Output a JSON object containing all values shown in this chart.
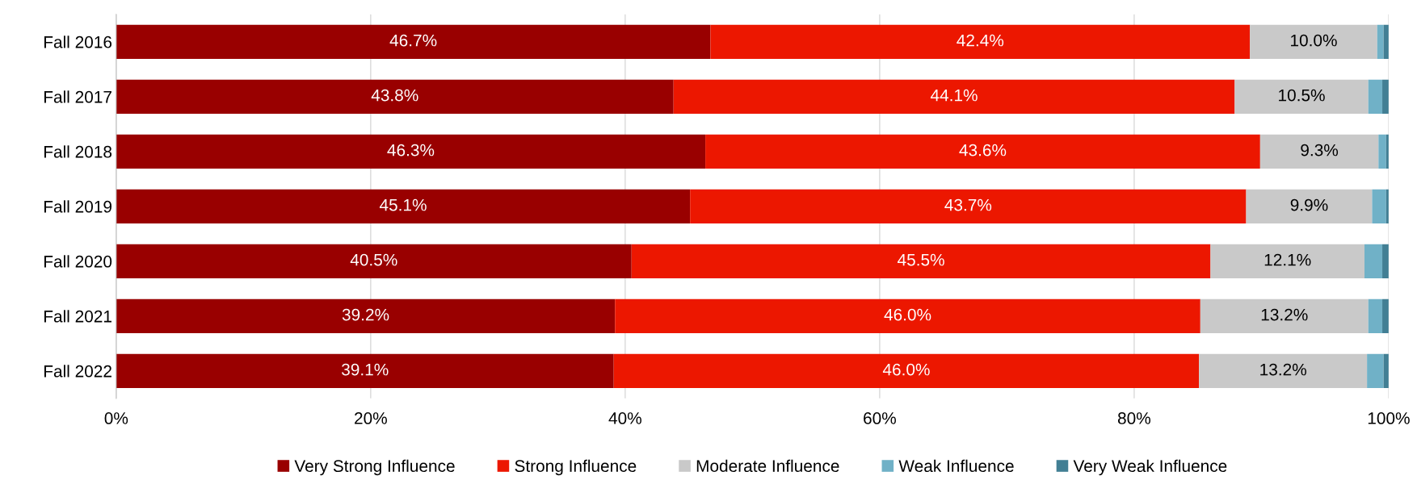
{
  "chart_data": {
    "type": "bar",
    "orientation": "horizontal",
    "stacked": true,
    "categories": [
      "Fall 2016",
      "Fall 2017",
      "Fall 2018",
      "Fall 2019",
      "Fall 2020",
      "Fall 2021",
      "Fall 2022"
    ],
    "series": [
      {
        "name": "Very Strong Influence",
        "color": "#990000",
        "values": [
          46.7,
          43.8,
          46.3,
          45.1,
          40.5,
          39.2,
          39.1
        ],
        "value_labels": [
          "46.7%",
          "43.8%",
          "46.3%",
          "45.1%",
          "40.5%",
          "39.2%",
          "39.1%"
        ]
      },
      {
        "name": "Strong Influence",
        "color": "#ec1700",
        "values": [
          42.4,
          44.1,
          43.6,
          43.7,
          45.5,
          46.0,
          46.0
        ],
        "value_labels": [
          "42.4%",
          "44.1%",
          "43.6%",
          "43.7%",
          "45.5%",
          "46.0%",
          "46.0%"
        ]
      },
      {
        "name": "Moderate Influence",
        "color": "#c9c9c9",
        "values": [
          10.0,
          10.5,
          9.3,
          9.9,
          12.1,
          13.2,
          13.2
        ],
        "value_labels": [
          "10.0%",
          "10.5%",
          "9.3%",
          "9.9%",
          "12.1%",
          "13.2%",
          "13.2%"
        ]
      },
      {
        "name": "Weak Influence",
        "color": "#70b1c7",
        "values": [
          0.5,
          1.1,
          0.6,
          1.1,
          1.4,
          1.1,
          1.3
        ]
      },
      {
        "name": "Very Weak Influence",
        "color": "#427f94",
        "values": [
          0.4,
          0.5,
          0.2,
          0.2,
          0.5,
          0.5,
          0.4
        ]
      }
    ],
    "xlim": [
      0,
      100
    ],
    "xticks": [
      {
        "value": 0,
        "label": "0%"
      },
      {
        "value": 20,
        "label": "20%"
      },
      {
        "value": 40,
        "label": "40%"
      },
      {
        "value": 60,
        "label": "60%"
      },
      {
        "value": 80,
        "label": "80%"
      },
      {
        "value": 100,
        "label": "100%"
      }
    ],
    "grid": "x",
    "legend": "bottom"
  }
}
